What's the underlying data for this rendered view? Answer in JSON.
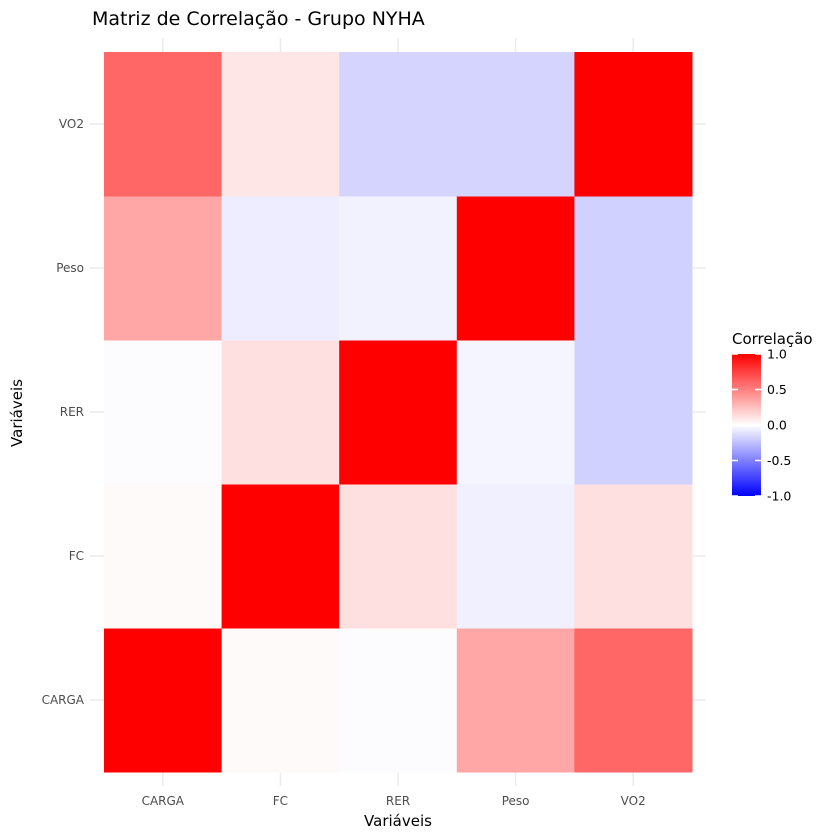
{
  "chart_data": {
    "type": "heatmap",
    "title": "Matriz de Correlação - Grupo NYHA",
    "xlabel": "Variáveis",
    "ylabel": "Variáveis",
    "x_categories": [
      "CARGA",
      "FC",
      "RER",
      "Peso",
      "VO2"
    ],
    "y_categories": [
      "CARGA",
      "FC",
      "RER",
      "Peso",
      "VO2"
    ],
    "values": [
      [
        1.0,
        0.02,
        -0.01,
        0.35,
        0.6
      ],
      [
        0.02,
        1.0,
        0.12,
        -0.06,
        0.12
      ],
      [
        -0.01,
        0.12,
        1.0,
        -0.04,
        -0.18
      ],
      [
        0.35,
        -0.07,
        -0.05,
        1.0,
        -0.18
      ],
      [
        0.6,
        0.1,
        -0.17,
        -0.17,
        1.0
      ]
    ],
    "color_scale": {
      "low": "#0000FF",
      "mid": "#FFFFFF",
      "high": "#FF0000",
      "limits": [
        -1,
        1
      ]
    },
    "legend": {
      "title": "Correlação",
      "ticks": [
        "1.0",
        "0.5",
        "0.0",
        "-0.5",
        "-1.0"
      ],
      "tick_values": [
        1.0,
        0.5,
        0.0,
        -0.5,
        -1.0
      ],
      "position": "right"
    },
    "grid": true
  }
}
